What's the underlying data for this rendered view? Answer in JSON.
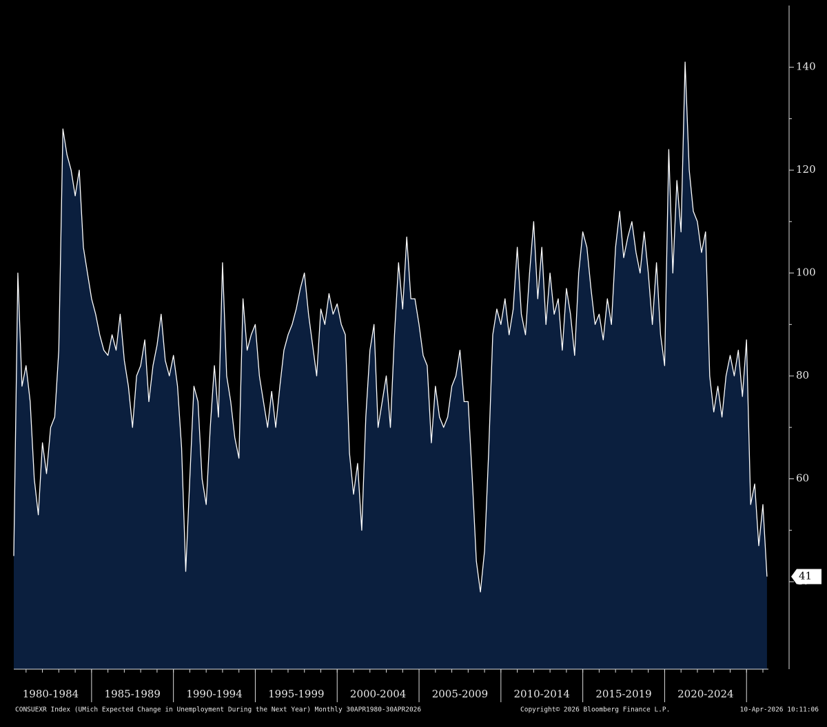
{
  "chart_data": {
    "type": "area",
    "footer_left": "CONSUEXR Index (UMich Expected Change in Unemployment During the Next Year) Monthly 30APR1980-30APR2026",
    "footer_center": "Copyright© 2026 Bloomberg Finance L.P.",
    "footer_right": "10-Apr-2026 10:11:06",
    "color": "#0b1f3e",
    "line_color": "#ffffff",
    "xlim": [
      1980.25,
      2027.6
    ],
    "xticks": [
      {
        "value": 1982.5,
        "label": "1980-1984"
      },
      {
        "value": 1987.5,
        "label": "1985-1989"
      },
      {
        "value": 1992.5,
        "label": "1990-1994"
      },
      {
        "value": 1997.5,
        "label": "1995-1999"
      },
      {
        "value": 2002.5,
        "label": "2000-2004"
      },
      {
        "value": 2007.5,
        "label": "2005-2009"
      },
      {
        "value": 2012.5,
        "label": "2010-2014"
      },
      {
        "value": 2017.5,
        "label": "2015-2019"
      },
      {
        "value": 2022.5,
        "label": "2020-2024"
      }
    ],
    "ylim": [
      23,
      152
    ],
    "yticks": [
      40,
      60,
      80,
      100,
      120,
      140
    ],
    "x": [
      1980.25,
      1980.5,
      1980.75,
      1981,
      1981.25,
      1981.5,
      1981.75,
      1982,
      1982.25,
      1982.5,
      1982.75,
      1983,
      1983.25,
      1983.5,
      1983.75,
      1984,
      1984.25,
      1984.5,
      1984.75,
      1985,
      1985.25,
      1985.5,
      1985.75,
      1986,
      1986.25,
      1986.5,
      1986.75,
      1987,
      1987.25,
      1987.5,
      1987.75,
      1988,
      1988.25,
      1988.5,
      1988.75,
      1989,
      1989.25,
      1989.5,
      1989.75,
      1990,
      1990.25,
      1990.5,
      1990.75,
      1991,
      1991.25,
      1991.5,
      1991.75,
      1992,
      1992.25,
      1992.5,
      1992.75,
      1993,
      1993.25,
      1993.5,
      1993.75,
      1994,
      1994.25,
      1994.5,
      1994.75,
      1995,
      1995.25,
      1995.5,
      1995.75,
      1996,
      1996.25,
      1996.5,
      1996.75,
      1997,
      1997.25,
      1997.5,
      1997.75,
      1998,
      1998.25,
      1998.5,
      1998.75,
      1999,
      1999.25,
      1999.5,
      1999.75,
      2000,
      2000.25,
      2000.5,
      2000.75,
      2001,
      2001.25,
      2001.5,
      2001.75,
      2002,
      2002.25,
      2002.5,
      2002.75,
      2003,
      2003.25,
      2003.5,
      2003.75,
      2004,
      2004.25,
      2004.5,
      2004.75,
      2005,
      2005.25,
      2005.5,
      2005.75,
      2006,
      2006.25,
      2006.5,
      2006.75,
      2007,
      2007.25,
      2007.5,
      2007.75,
      2008,
      2008.25,
      2008.5,
      2008.75,
      2009,
      2009.25,
      2009.5,
      2009.75,
      2010,
      2010.25,
      2010.5,
      2010.75,
      2011,
      2011.25,
      2011.5,
      2011.75,
      2012,
      2012.25,
      2012.5,
      2012.75,
      2013,
      2013.25,
      2013.5,
      2013.75,
      2014,
      2014.25,
      2014.5,
      2014.75,
      2015,
      2015.25,
      2015.5,
      2015.75,
      2016,
      2016.25,
      2016.5,
      2016.75,
      2017,
      2017.25,
      2017.5,
      2017.75,
      2018,
      2018.25,
      2018.5,
      2018.75,
      2019,
      2019.25,
      2019.5,
      2019.75,
      2020,
      2020.25,
      2020.5,
      2020.75,
      2021,
      2021.25,
      2021.5,
      2021.75,
      2022,
      2022.25,
      2022.5,
      2022.75,
      2023,
      2023.25,
      2023.5,
      2023.75,
      2024,
      2024.25,
      2024.5,
      2024.75,
      2025,
      2025.25,
      2025.5,
      2025.75,
      2026,
      2026.25
    ],
    "values": [
      45,
      100,
      78,
      82,
      75,
      60,
      53,
      67,
      61,
      70,
      72,
      85,
      128,
      123,
      120,
      115,
      120,
      105,
      100,
      95,
      92,
      88,
      85,
      84,
      88,
      85,
      92,
      83,
      78,
      70,
      80,
      82,
      87,
      75,
      82,
      86,
      92,
      83,
      80,
      84,
      78,
      66,
      42,
      60,
      78,
      75,
      60,
      55,
      70,
      82,
      72,
      102,
      80,
      75,
      68,
      64,
      95,
      85,
      88,
      90,
      80,
      75,
      70,
      77,
      70,
      78,
      85,
      88,
      90,
      93,
      97,
      100,
      92,
      86,
      80,
      93,
      90,
      96,
      92,
      94,
      90,
      88,
      65,
      57,
      63,
      50,
      72,
      85,
      90,
      70,
      75,
      80,
      70,
      88,
      102,
      93,
      107,
      95,
      95,
      90,
      84,
      82,
      67,
      78,
      72,
      70,
      72,
      78,
      80,
      85,
      75,
      75,
      60,
      44,
      38,
      46,
      65,
      88,
      93,
      90,
      95,
      88,
      93,
      105,
      92,
      88,
      100,
      110,
      95,
      105,
      90,
      100,
      92,
      95,
      85,
      97,
      92,
      84,
      100,
      108,
      105,
      97,
      90,
      92,
      87,
      95,
      90,
      105,
      112,
      103,
      107,
      110,
      104,
      100,
      108,
      100,
      90,
      102,
      88,
      82,
      124,
      100,
      118,
      108,
      141,
      120,
      112,
      110,
      104,
      108,
      80,
      73,
      78,
      72,
      80,
      84,
      80,
      85,
      76,
      87,
      55,
      59,
      47,
      55,
      41
    ]
  }
}
